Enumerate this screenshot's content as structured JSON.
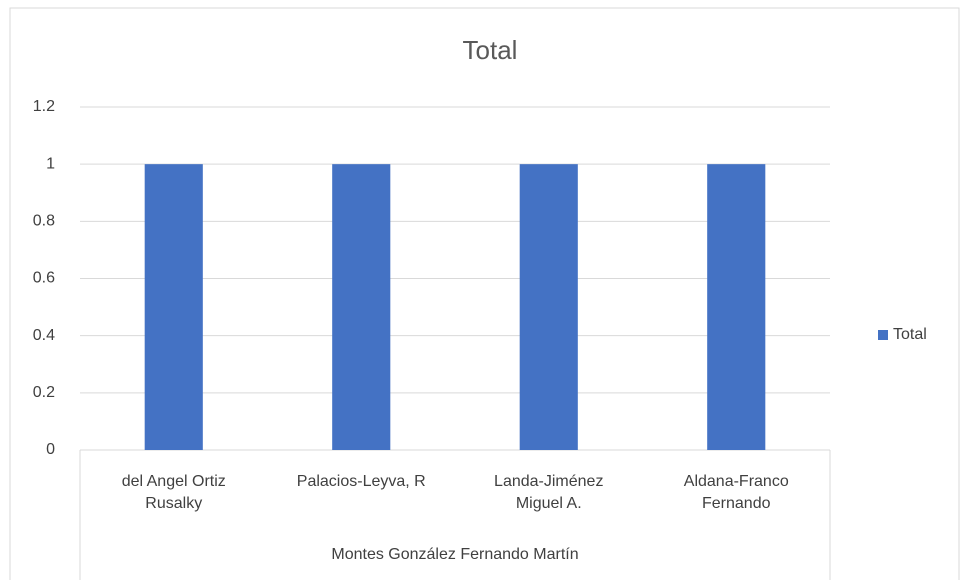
{
  "chart_data": {
    "type": "bar",
    "title": "Total",
    "categories": [
      "del Angel Ortiz Rusalky",
      "Palacios-Leyva, R",
      "Landa-Jiménez Miguel A.",
      "Aldana-Franco Fernando"
    ],
    "category_group": "Montes González Fernando Martín",
    "series": [
      {
        "name": "Total",
        "color": "#4472c4",
        "values": [
          1,
          1,
          1,
          1
        ]
      }
    ],
    "ylim": [
      0,
      1.2
    ],
    "yticks": [
      0,
      0.2,
      0.4,
      0.6,
      0.8,
      1,
      1.2
    ],
    "grid": true,
    "legend": "right"
  }
}
